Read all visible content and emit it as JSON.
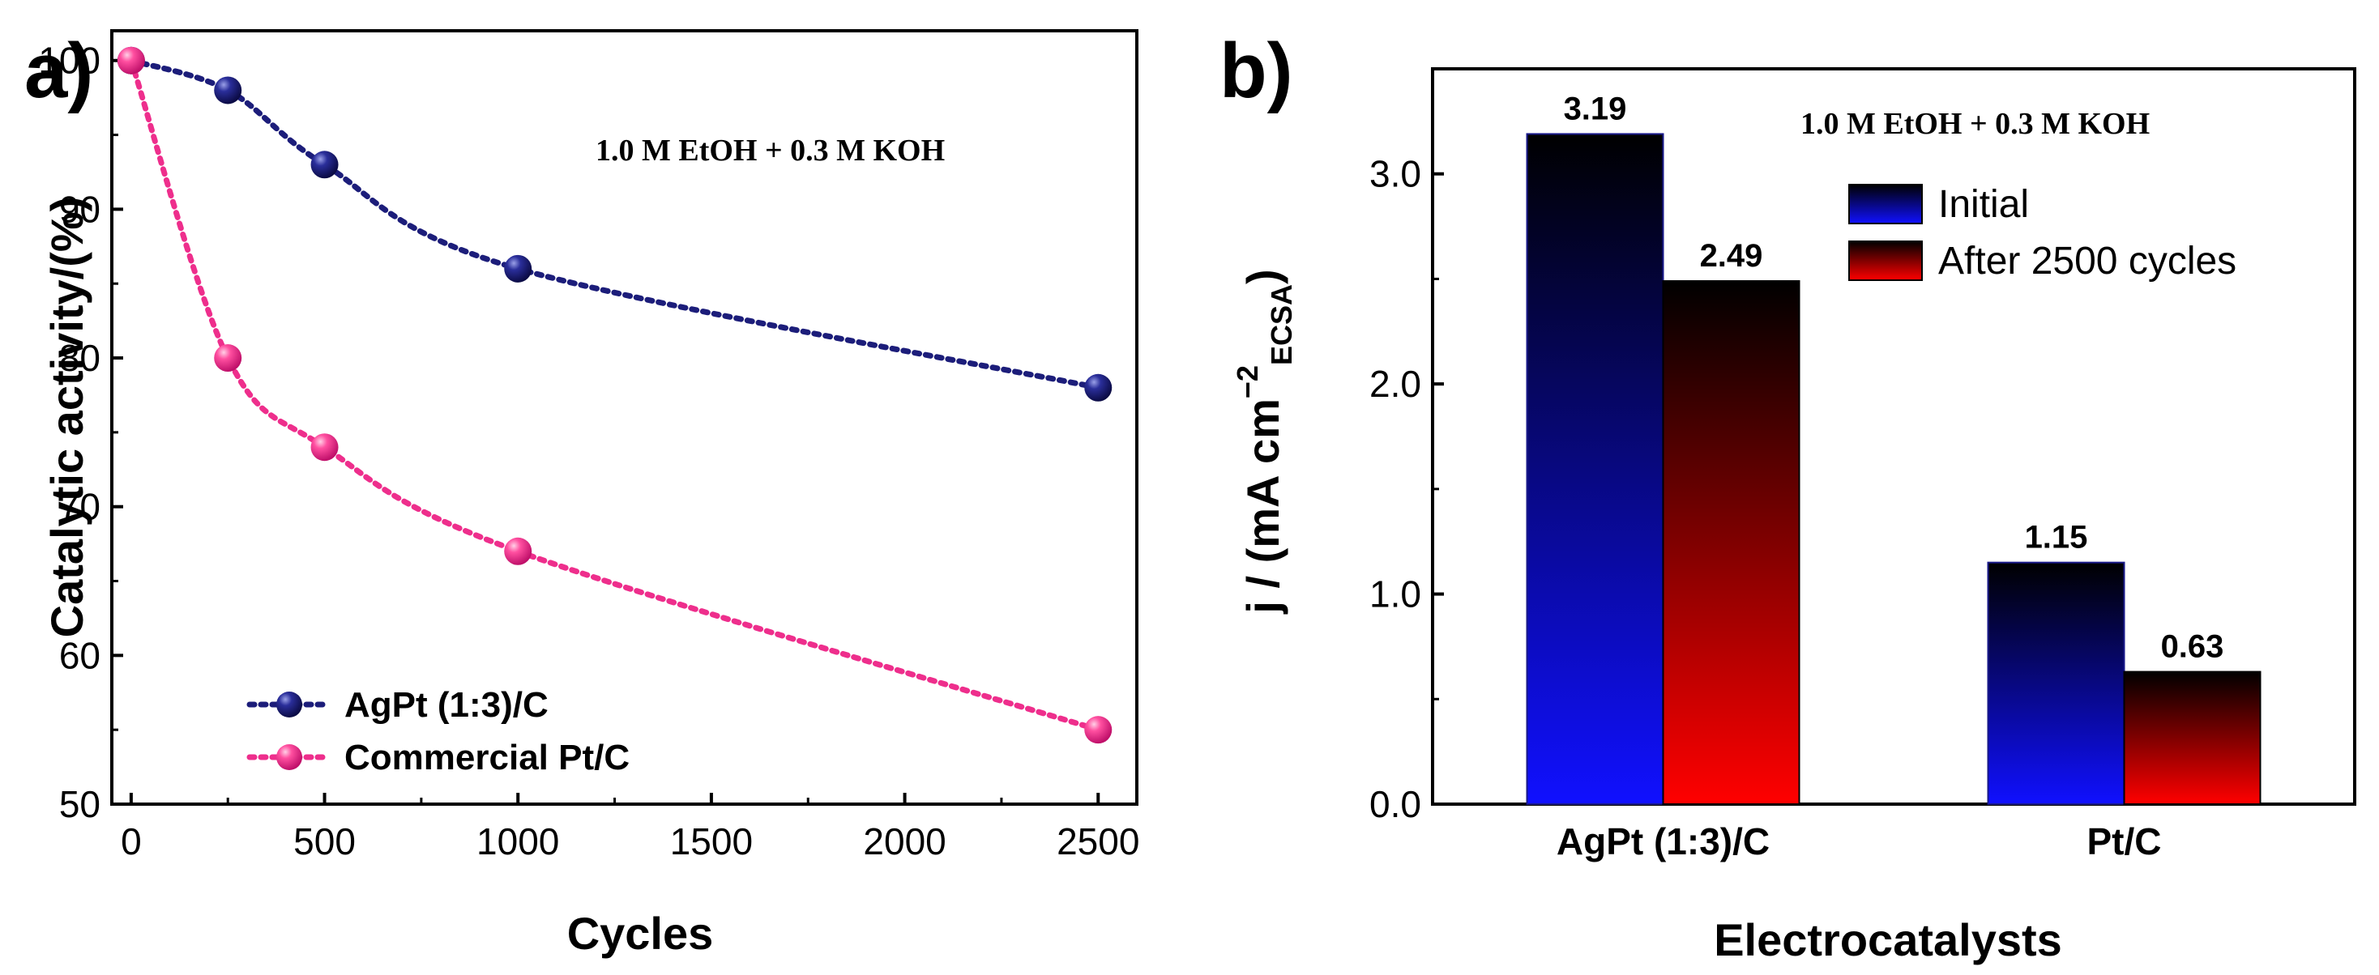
{
  "chart_data": [
    {
      "panel": "a)",
      "type": "line",
      "xlabel": "Cycles",
      "ylabel": "Catalytic activity/(%)",
      "xlim": [
        -50,
        2600
      ],
      "ylim": [
        50,
        102
      ],
      "xticks": [
        0,
        500,
        1000,
        1500,
        2000,
        2500
      ],
      "yticks": [
        50,
        60,
        70,
        80,
        90,
        100
      ],
      "annotation": "1.0 M EtOH + 0.3 M KOH",
      "legend_position": "bottom-left",
      "series": [
        {
          "name": "AgPt (1:3)/C",
          "color": "#1c1d7a",
          "x": [
            0,
            250,
            500,
            1000,
            2500
          ],
          "y": [
            100,
            98,
            93,
            86,
            78
          ]
        },
        {
          "name": "Commercial Pt/C",
          "color": "#ee2e8c",
          "x": [
            0,
            250,
            500,
            1000,
            2500
          ],
          "y": [
            100,
            80,
            74,
            67,
            55
          ]
        }
      ]
    },
    {
      "panel": "b)",
      "type": "bar",
      "xlabel": "Electrocatalysts",
      "ylabel": "j / (mA cm",
      "ylabel_sup": "−2",
      "ylabel_sub": "ECSA",
      "ylabel_close": ")",
      "ylim": [
        0,
        3.5
      ],
      "yticks": [
        "0.0",
        "1.0",
        "2.0",
        "3.0"
      ],
      "categories": [
        "AgPt (1:3)/C",
        "Pt/C"
      ],
      "annotation": "1.0 M EtOH + 0.3 M KOH",
      "legend_position": "top-right",
      "series": [
        {
          "name": "Initial",
          "top_color": "#000000",
          "bottom_color": "#1010ff",
          "values": [
            3.19,
            1.15
          ],
          "labels": [
            "3.19",
            "1.15"
          ]
        },
        {
          "name": "After 2500 cycles",
          "top_color": "#000000",
          "bottom_color": "#ff0000",
          "values": [
            2.49,
            0.63
          ],
          "labels": [
            "2.49",
            "0.63"
          ]
        }
      ]
    }
  ]
}
